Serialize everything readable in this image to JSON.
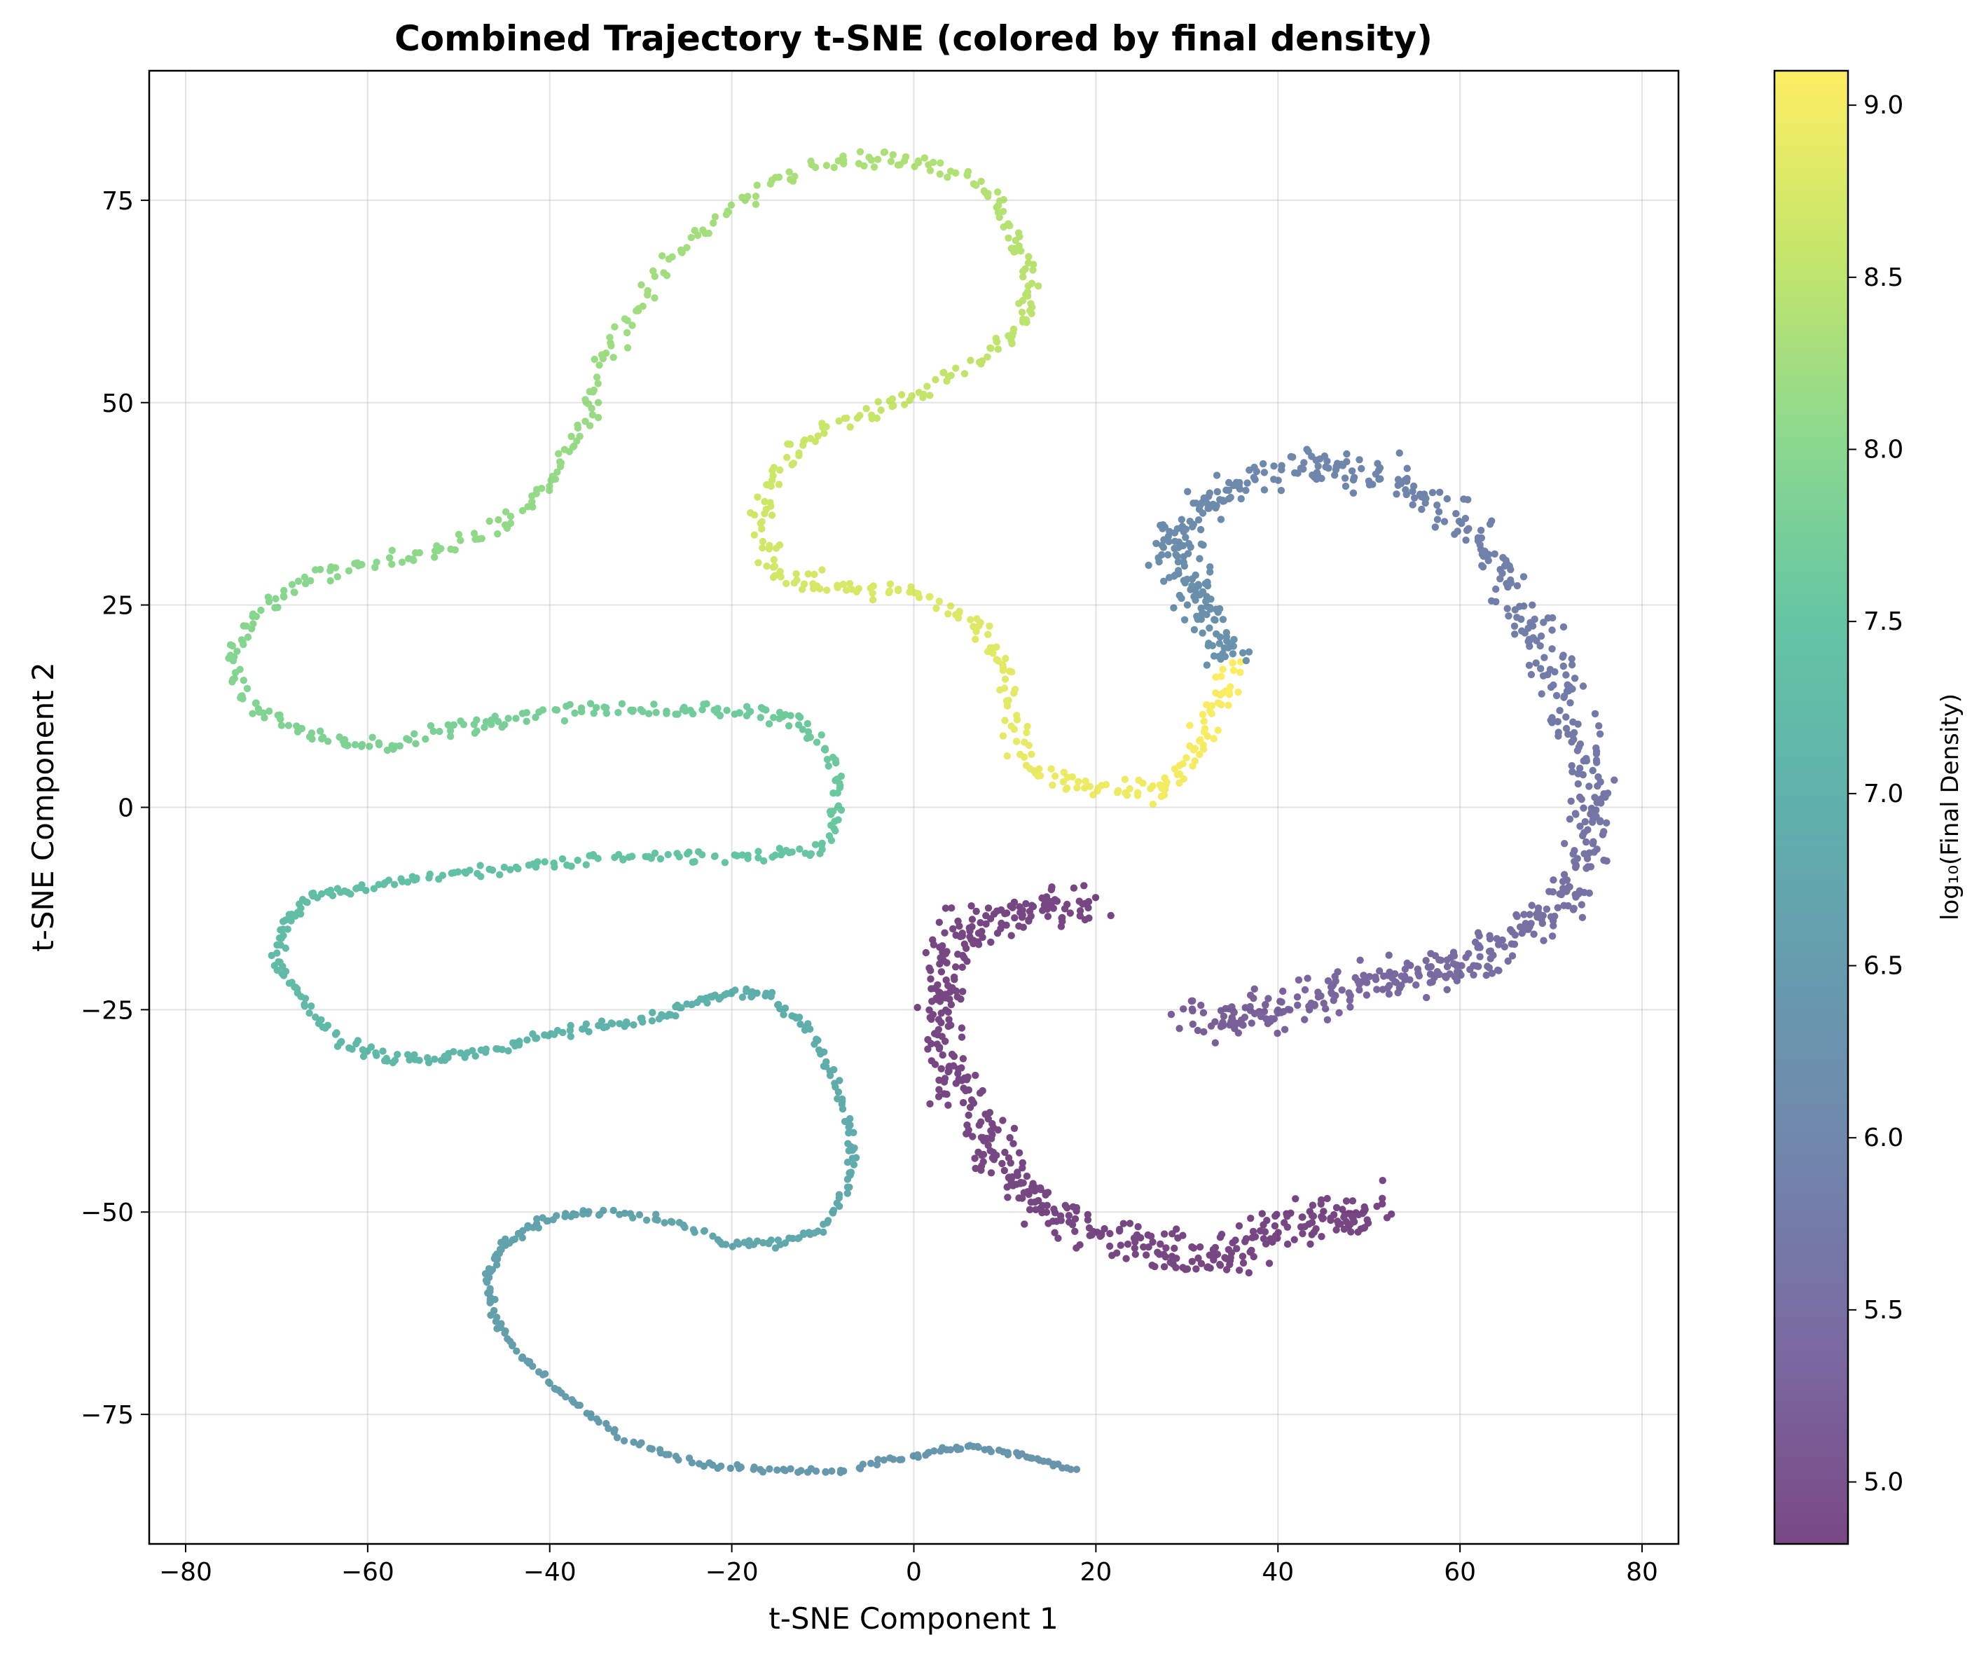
{
  "chart_data": {
    "type": "scatter",
    "title": "Combined Trajectory t-SNE (colored by final density)",
    "xlabel": "t-SNE Component 1",
    "ylabel": "t-SNE Component 2",
    "xlim": [
      -84,
      84
    ],
    "ylim": [
      -91,
      91
    ],
    "xticks": [
      -80,
      -60,
      -40,
      -20,
      0,
      20,
      40,
      60,
      80
    ],
    "yticks": [
      -75,
      -50,
      -25,
      0,
      25,
      50,
      75
    ],
    "grid": true,
    "colormap": "viridis",
    "colorbar": {
      "label": "log₁₀(Final Density)",
      "range": [
        4.82,
        9.1
      ],
      "ticks": [
        5.0,
        5.5,
        6.0,
        6.5,
        7.0,
        7.5,
        8.0,
        8.5,
        9.0
      ]
    },
    "series": [
      {
        "color_value_range": [
          6.3,
          9.1
        ],
        "x": [
          18,
          12,
          6,
          0,
          -8,
          -16,
          -24,
          -32,
          -38,
          -43,
          -46,
          -47,
          -45,
          -41,
          -35,
          -27,
          -20,
          -15,
          -10,
          -7,
          -7,
          -9,
          -12,
          -16,
          -20,
          -24,
          -28,
          -34,
          -40,
          -46,
          -52,
          -58,
          -63,
          -67,
          -70,
          -69,
          -66,
          -61,
          -55,
          -48,
          -40,
          -32,
          -24,
          -16,
          -10,
          -8,
          -9,
          -13,
          -18,
          -24,
          -30,
          -37,
          -44,
          -50,
          -57,
          -63,
          -69,
          -74,
          -75,
          -72,
          -67,
          -60,
          -52,
          -45,
          -40,
          -37,
          -35,
          -32,
          -28,
          -23,
          -16,
          -8,
          -2,
          4,
          9,
          11,
          13,
          12,
          8,
          2,
          -4,
          -10,
          -15,
          -17,
          -16,
          -12,
          -6,
          1,
          7,
          10,
          11,
          12,
          16,
          22,
          27,
          30,
          32,
          34,
          35
        ],
        "y": [
          -82,
          -80,
          -79,
          -80,
          -82,
          -82,
          -81,
          -78,
          -73,
          -68,
          -63,
          -58,
          -54,
          -51,
          -50,
          -51,
          -54,
          -54,
          -52,
          -46,
          -40,
          -33,
          -27,
          -23,
          -23,
          -24,
          -26,
          -27,
          -28,
          -30,
          -31,
          -31,
          -29,
          -24,
          -19,
          -14,
          -11,
          -10,
          -9,
          -8,
          -7,
          -6,
          -6,
          -6,
          -5,
          0,
          6,
          11,
          12,
          12,
          12,
          12,
          11,
          10,
          8,
          8,
          10,
          14,
          19,
          24,
          28,
          30,
          32,
          35,
          40,
          46,
          52,
          59,
          66,
          72,
          77,
          80,
          80,
          79,
          75,
          70,
          65,
          60,
          56,
          52,
          49,
          46,
          42,
          36,
          30,
          28,
          27,
          26,
          23,
          18,
          12,
          6,
          3,
          2,
          2,
          5,
          10,
          14,
          18
        ]
      },
      {
        "color_value_range": [
          6.3,
          5.2
        ],
        "x": [
          35,
          33,
          31,
          29,
          28,
          31,
          36,
          42,
          48,
          54,
          60,
          64,
          67,
          70,
          72,
          74,
          75,
          74,
          72,
          69,
          65,
          61,
          57,
          53,
          48,
          43,
          38,
          34,
          31
        ],
        "y": [
          18,
          22,
          26,
          30,
          33,
          37,
          40,
          42,
          42,
          40,
          36,
          30,
          24,
          18,
          12,
          6,
          0,
          -5,
          -10,
          -14,
          -17,
          -19,
          -20,
          -21,
          -22,
          -24,
          -25,
          -26,
          -26
        ]
      },
      {
        "color_value_range": [
          4.82,
          4.82
        ],
        "x": [
          20,
          15,
          10,
          6,
          4,
          3,
          3,
          4,
          6,
          8,
          10,
          13,
          17,
          22,
          27,
          32,
          36,
          40,
          44,
          48,
          50
        ],
        "y": [
          -12,
          -12,
          -13,
          -15,
          -18,
          -22,
          -27,
          -32,
          -37,
          -41,
          -45,
          -48,
          -51,
          -53,
          -55,
          -56,
          -55,
          -52,
          -51,
          -50,
          -50
        ]
      }
    ]
  }
}
